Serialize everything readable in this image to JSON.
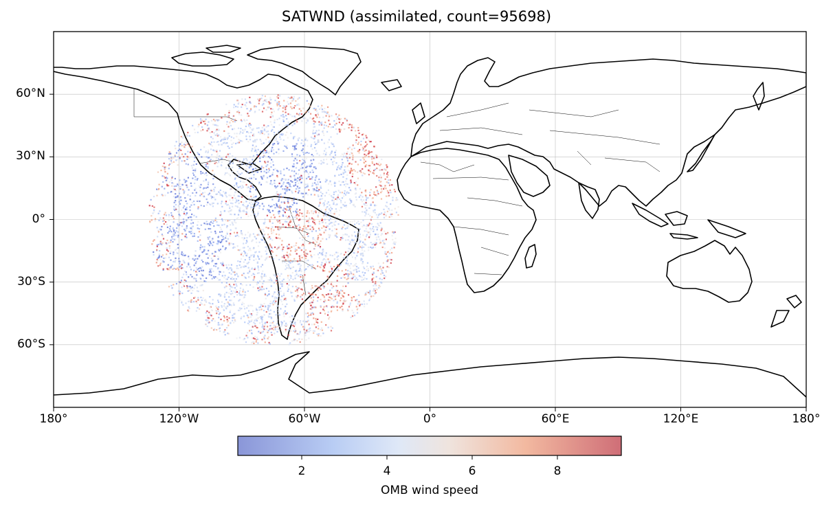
{
  "title": "SATWND (assimilated, count=95698)",
  "map": {
    "projection": "PlateCarree",
    "extent": {
      "lon": [
        -180,
        180
      ],
      "lat": [
        -90,
        90
      ]
    },
    "gridlines": true,
    "coastlines": true,
    "borders": true,
    "lat_tick_labels": [
      "60°N",
      "30°N",
      "0°",
      "30°S",
      "60°S"
    ],
    "lon_tick_labels": [
      "180°",
      "120°W",
      "60°W",
      "0°",
      "60°E",
      "120°E",
      "180°"
    ]
  },
  "chart_data": {
    "type": "scatter",
    "title": "SATWND (assimilated, count=95698)",
    "count": 95698,
    "variable": "OMB wind speed",
    "coverage": {
      "center_lon": -75,
      "center_lat": 0,
      "radius_deg": 60
    },
    "color_range": [
      0.5,
      9.5
    ],
    "colormap": [
      "#4a5fd0",
      "#a9c2f8",
      "#eeeeee",
      "#f4a37f",
      "#c4132c"
    ],
    "high_value_regions": [
      {
        "lon": -25,
        "lat": 25
      },
      {
        "lon": -65,
        "lat": -5
      },
      {
        "lon": -50,
        "lat": -35
      },
      {
        "lon": -30,
        "lat": 45
      }
    ],
    "low_value_regions": [
      {
        "lon": -115,
        "lat": -15
      },
      {
        "lon": -120,
        "lat": 20
      },
      {
        "lon": -70,
        "lat": 20
      }
    ]
  },
  "colorbar": {
    "label": "OMB wind speed",
    "ticks": [
      "2",
      "4",
      "6",
      "8"
    ],
    "tick_values": [
      2,
      4,
      6,
      8
    ],
    "range": [
      0.5,
      9.5
    ]
  }
}
